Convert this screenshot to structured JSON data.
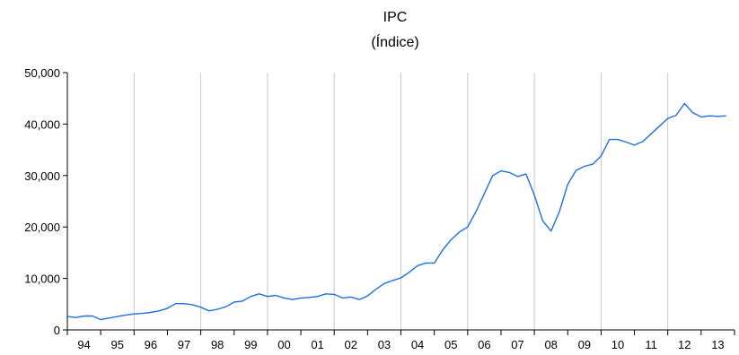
{
  "chart_data": {
    "type": "line",
    "title": "IPC",
    "subtitle": "(Índice)",
    "xlabel": "",
    "ylabel": "",
    "ylim": [
      0,
      50000
    ],
    "y_ticks": [
      "0",
      "10,000",
      "20,000",
      "30,000",
      "40,000",
      "50,000"
    ],
    "x_tick_labels": [
      "94",
      "95",
      "96",
      "97",
      "98",
      "99",
      "00",
      "01",
      "02",
      "03",
      "04",
      "05",
      "06",
      "07",
      "08",
      "09",
      "10",
      "11",
      "12",
      "13"
    ],
    "x_range": [
      1994.0,
      2014.0
    ],
    "grid": "vertical lines at year boundaries",
    "line_color": "#1f6fdc",
    "series": [
      {
        "x": [
          1994.0,
          1994.25,
          1994.5,
          1994.75,
          1995.0,
          1995.25,
          1995.5,
          1995.75,
          1996.0,
          1996.25,
          1996.5,
          1996.75,
          1997.0,
          1997.25,
          1997.5,
          1997.75,
          1998.0,
          1998.25,
          1998.5,
          1998.75,
          1999.0,
          1999.25,
          1999.5,
          1999.75,
          2000.0,
          2000.25,
          2000.5,
          2000.75,
          2001.0,
          2001.25,
          2001.5,
          2001.75,
          2002.0,
          2002.25,
          2002.5,
          2002.75,
          2003.0,
          2003.25,
          2003.5,
          2003.75,
          2004.0,
          2004.25,
          2004.5,
          2004.75,
          2005.0,
          2005.25,
          2005.5,
          2005.75,
          2006.0,
          2006.25,
          2006.5,
          2006.75,
          2007.0,
          2007.25,
          2007.5,
          2007.75,
          2008.0,
          2008.25,
          2008.5,
          2008.75,
          2009.0,
          2009.25,
          2009.5,
          2009.75,
          2010.0,
          2010.25,
          2010.5,
          2010.75,
          2011.0,
          2011.25,
          2011.5,
          2011.75,
          2012.0,
          2012.25,
          2012.5,
          2012.75,
          2013.0,
          2013.25,
          2013.5,
          2013.75
        ],
        "values": [
          2600,
          2400,
          2700,
          2700,
          2000,
          2300,
          2600,
          2900,
          3100,
          3200,
          3400,
          3700,
          4200,
          5100,
          5100,
          4900,
          4400,
          3700,
          4000,
          4500,
          5400,
          5600,
          6500,
          7000,
          6500,
          6700,
          6200,
          5900,
          6200,
          6300,
          6500,
          7000,
          6900,
          6200,
          6400,
          5900,
          6600,
          7900,
          9000,
          9600,
          10100,
          11200,
          12500,
          13000,
          13000,
          15500,
          17500,
          19000,
          20000,
          23000,
          26500,
          30000,
          30900,
          30600,
          29800,
          30300,
          26200,
          21200,
          19200,
          23000,
          28300,
          31000,
          31800,
          32200,
          33800,
          37000,
          37000,
          36500,
          35900,
          36600,
          38100,
          39600,
          41100,
          41700,
          44000,
          42200,
          41400,
          41600,
          41500,
          41600
        ]
      }
    ]
  }
}
